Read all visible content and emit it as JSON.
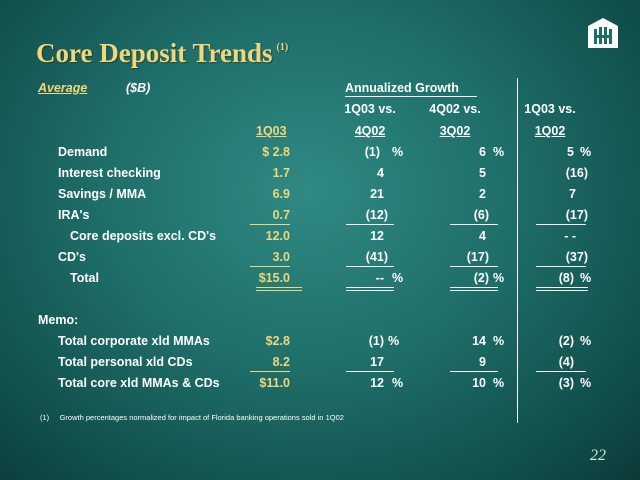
{
  "title": "Core Deposit Trends",
  "title_footnote_mark": "(1)",
  "header": {
    "average": "Average",
    "unit": "($B)",
    "annualized_growth": "Annualized Growth",
    "col1_top": "1Q03 vs.",
    "col2_top": "4Q02 vs.",
    "col3_top": "1Q03 vs.",
    "col0": "1Q03",
    "col1": "4Q02",
    "col2": "3Q02",
    "col3": "1Q02"
  },
  "rows": [
    {
      "label": "Demand",
      "v": "$  2.8",
      "g1": "(1)",
      "p1": "%",
      "g2": "6",
      "p2": "%",
      "g3": "5",
      "p3": "%"
    },
    {
      "label": "Interest checking",
      "v": "1.7",
      "g1": "4",
      "p1": "",
      "g2": "5",
      "p2": "",
      "g3": "(16)",
      "p3": ""
    },
    {
      "label": "Savings / MMA",
      "v": "6.9",
      "g1": "21",
      "p1": "",
      "g2": "2",
      "p2": "",
      "g3": "7",
      "p3": ""
    },
    {
      "label": "IRA's",
      "v": "0.7",
      "g1": "(12)",
      "p1": "",
      "g2": "(6)",
      "p2": "",
      "g3": "(17)",
      "p3": ""
    },
    {
      "label": "Core deposits excl. CD's",
      "v": "12.0",
      "g1": "12",
      "p1": "",
      "g2": "4",
      "p2": "",
      "g3": "- -",
      "p3": ""
    },
    {
      "label": "CD's",
      "v": "3.0",
      "g1": "(41)",
      "p1": "",
      "g2": "(17)",
      "p2": "",
      "g3": "(37)",
      "p3": ""
    },
    {
      "label": "Total",
      "v": "$15.0",
      "g1": "--",
      "p1": "%",
      "g2": "(2)",
      "p2": "%",
      "g3": "(8)",
      "p3": "%"
    }
  ],
  "memo_label": "Memo:",
  "memo_rows": [
    {
      "label": "Total corporate xld MMAs",
      "v": "$2.8",
      "g1": "(1)",
      "p1": "%",
      "g2": "14",
      "p2": "%",
      "g3": "(2)",
      "p3": "%"
    },
    {
      "label": "Total personal xld CDs",
      "v": "8.2",
      "g1": "17",
      "p1": "",
      "g2": "9",
      "p2": "",
      "g3": "(4)",
      "p3": ""
    },
    {
      "label": "Total core xld MMAs & CDs",
      "v": "$11.0",
      "g1": "12",
      "p1": "%",
      "g2": "10",
      "p2": "%",
      "g3": "(3)",
      "p3": "%"
    }
  ],
  "footnote_marker": "(1)",
  "footnote_text": "Growth percentages normalized for impact of Florida banking operations sold in 1Q02",
  "page_number": "22",
  "colors": {
    "accent": "#f2d67a",
    "background": "#1e6d68",
    "text": "#ffffff"
  }
}
